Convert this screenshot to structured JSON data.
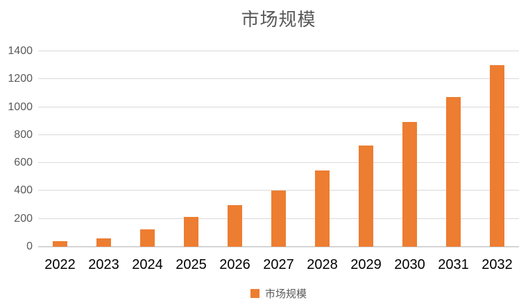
{
  "chart_title": "市场规模",
  "legend": {
    "label": "市场规模"
  },
  "colors": {
    "bar": "#ED7D31",
    "gridline": "#D9D9D9",
    "axis_line": "#D4D4D4",
    "title_text": "#595959",
    "y_tick_text": "#595959",
    "x_tick_text": "#000000",
    "background": "#FFFFFF"
  },
  "chart_data": {
    "type": "bar",
    "title": "市场规模",
    "series": [
      {
        "name": "市场规模",
        "values": [
          40,
          60,
          125,
          215,
          300,
          400,
          545,
          725,
          895,
          1070,
          1300
        ]
      }
    ],
    "categories": [
      "2022",
      "2023",
      "2024",
      "2025",
      "2026",
      "2027",
      "2028",
      "2029",
      "2030",
      "2031",
      "2032"
    ],
    "xlabel": "",
    "ylabel": "",
    "ylim": [
      0,
      1400
    ],
    "yticks": [
      0,
      200,
      400,
      600,
      800,
      1000,
      1200,
      1400
    ],
    "grid": "horizontal",
    "legend_position": "bottom",
    "bar_color": "#ED7D31"
  }
}
